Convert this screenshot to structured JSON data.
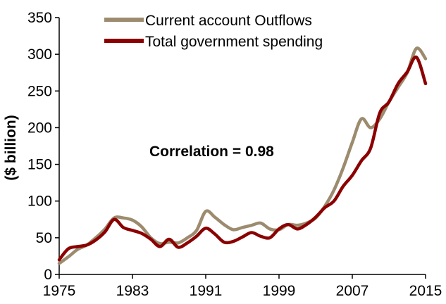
{
  "chart_data": {
    "type": "line",
    "title": "",
    "xlabel": "",
    "ylabel": "($ billion)",
    "xlim": [
      1975,
      2015
    ],
    "ylim": [
      0,
      350
    ],
    "x_ticks": [
      "1975",
      "1983",
      "1991",
      "1999",
      "2007",
      "2015"
    ],
    "y_ticks": [
      "0",
      "50",
      "100",
      "150",
      "200",
      "250",
      "300",
      "350"
    ],
    "grid": false,
    "legend_position": "top-center",
    "annotation": "Correlation = 0.98",
    "series": [
      {
        "name": "Current account Outflows",
        "color": "#9c8b6e",
        "x": [
          1975,
          1976,
          1977,
          1978,
          1979,
          1980,
          1981,
          1982,
          1983,
          1984,
          1985,
          1986,
          1987,
          1988,
          1989,
          1990,
          1991,
          1992,
          1993,
          1994,
          1995,
          1996,
          1997,
          1998,
          1999,
          2000,
          2001,
          2002,
          2003,
          2004,
          2005,
          2006,
          2007,
          2008,
          2009,
          2010,
          2011,
          2012,
          2013,
          2014,
          2015
        ],
        "values": [
          15,
          24,
          34,
          40,
          50,
          62,
          77,
          77,
          74,
          65,
          50,
          42,
          44,
          43,
          50,
          60,
          86,
          78,
          68,
          61,
          64,
          67,
          70,
          62,
          61,
          68,
          67,
          70,
          77,
          93,
          115,
          145,
          180,
          212,
          200,
          212,
          235,
          255,
          275,
          308,
          294
        ]
      },
      {
        "name": "Total government spending",
        "color": "#8b0000",
        "x": [
          1975,
          1976,
          1977,
          1978,
          1979,
          1980,
          1981,
          1982,
          1983,
          1984,
          1985,
          1986,
          1987,
          1988,
          1989,
          1990,
          1991,
          1992,
          1993,
          1994,
          1995,
          1996,
          1997,
          1998,
          1999,
          2000,
          2001,
          2002,
          2003,
          2004,
          2005,
          2006,
          2007,
          2008,
          2009,
          2010,
          2011,
          2012,
          2013,
          2014,
          2015
        ],
        "values": [
          20,
          35,
          38,
          40,
          47,
          58,
          75,
          64,
          60,
          56,
          48,
          38,
          48,
          37,
          43,
          52,
          63,
          55,
          44,
          45,
          51,
          57,
          52,
          50,
          62,
          68,
          62,
          68,
          78,
          91,
          100,
          120,
          135,
          155,
          172,
          220,
          235,
          260,
          276,
          296,
          260
        ]
      }
    ]
  }
}
